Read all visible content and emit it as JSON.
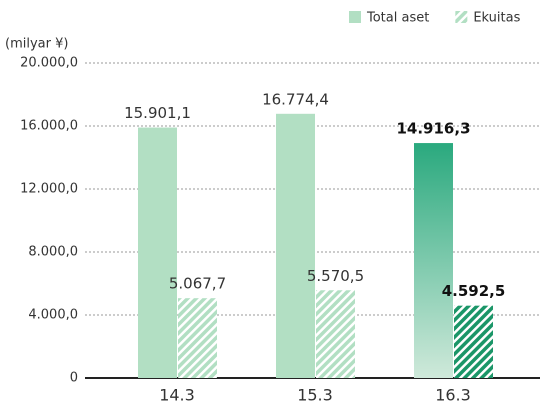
{
  "chart_data": {
    "type": "bar",
    "y_label": "(milyar ¥)",
    "categories": [
      "14.3",
      "15.3",
      "16.3"
    ],
    "series": [
      {
        "name": "Total aset",
        "color": "#b2dfc3",
        "values": [
          15901.1,
          16774.4,
          14916.3
        ],
        "value_labels": [
          "15.901,1",
          "16.774,4",
          "14.916,3"
        ]
      },
      {
        "name": "Ekuitas",
        "color": "#b2dfc3",
        "hatched": true,
        "values": [
          5067.7,
          5570.5,
          4592.5
        ],
        "value_labels": [
          "5.067,7",
          "5.570,5",
          "4.592,5"
        ]
      }
    ],
    "highlight": {
      "category": 2,
      "colors": [
        "#2aa97e",
        "#1b9668"
      ]
    },
    "ylim": [
      0,
      20000
    ],
    "yticks": [
      0,
      {
        "value": 4000,
        "label": "4.000,0"
      },
      {
        "value": 8000,
        "label": "8.000,0"
      },
      {
        "value": 12000,
        "label": "12.000,0"
      },
      {
        "value": 16000,
        "label": "16.000,0"
      },
      {
        "value": 20000,
        "label": "20.000,0"
      }
    ],
    "grid": true,
    "legend": "top-right"
  }
}
